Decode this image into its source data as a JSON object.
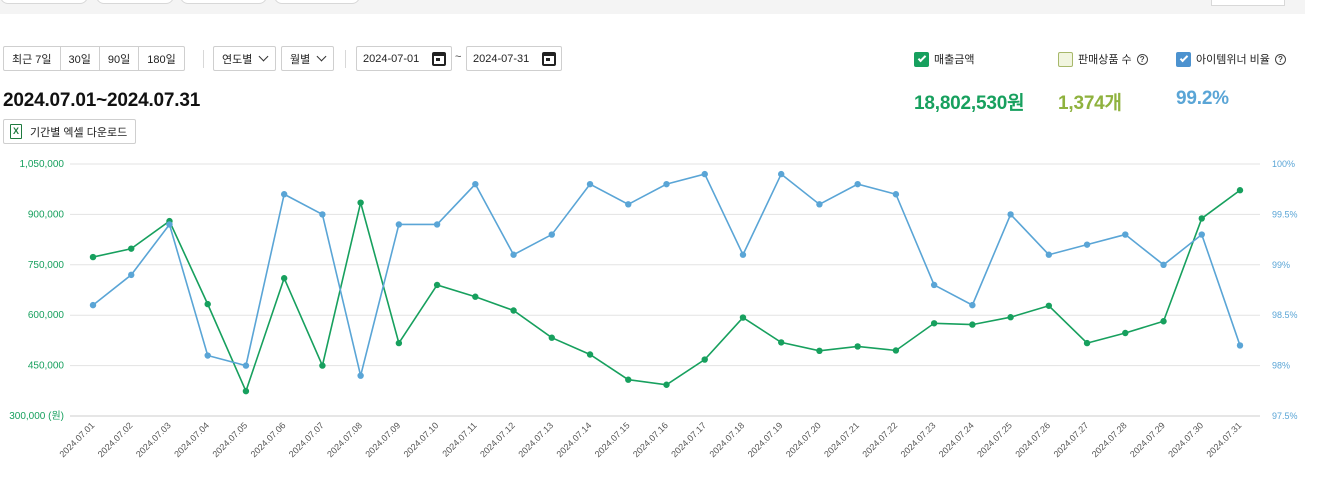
{
  "period_buttons": [
    "최근 7일",
    "30일",
    "90일",
    "180일"
  ],
  "selects": {
    "yearly": "연도별",
    "monthly": "월별"
  },
  "date_range": {
    "start": "2024-07-01",
    "separator": "~",
    "end": "2024-07-31"
  },
  "range_title": "2024.07.01~2024.07.31",
  "download_label": "기간별 엑셀 다운로드",
  "excel_icon_text": "X",
  "legend": {
    "sales": {
      "label": "매출금액",
      "checked": true
    },
    "products": {
      "label": "판매상품 수",
      "checked": false
    },
    "winner": {
      "label": "아이템위너 비율",
      "checked": true
    },
    "help_glyph": "?"
  },
  "totals": {
    "sales": "18,802,530원",
    "products": "1,374개",
    "winner": "99.2%"
  },
  "colors": {
    "sales": "#17a05e",
    "products": "#8fb23e",
    "winner": "#5aa5d6",
    "grid": "#e3e3e3"
  },
  "chart_data": {
    "type": "line",
    "x": [
      "2024.07.01",
      "2024.07.02",
      "2024.07.03",
      "2024.07.04",
      "2024.07.05",
      "2024.07.06",
      "2024.07.07",
      "2024.07.08",
      "2024.07.09",
      "2024.07.10",
      "2024.07.11",
      "2024.07.12",
      "2024.07.13",
      "2024.07.14",
      "2024.07.15",
      "2024.07.16",
      "2024.07.17",
      "2024.07.18",
      "2024.07.19",
      "2024.07.20",
      "2024.07.21",
      "2024.07.22",
      "2024.07.23",
      "2024.07.24",
      "2024.07.25",
      "2024.07.26",
      "2024.07.27",
      "2024.07.28",
      "2024.07.29",
      "2024.07.30",
      "2024.07.31"
    ],
    "series": [
      {
        "name": "매출금액",
        "axis": "left",
        "color": "#17a05e",
        "values": [
          773000,
          798000,
          880000,
          633000,
          374000,
          710000,
          450000,
          935000,
          517000,
          690000,
          655000,
          614000,
          533000,
          483000,
          408000,
          393000,
          468000,
          593000,
          519000,
          494000,
          507000,
          495000,
          576000,
          572000,
          594000,
          628000,
          517000,
          547000,
          582000,
          888000,
          972000
        ]
      },
      {
        "name": "아이템위너 비율",
        "axis": "right",
        "color": "#5aa5d6",
        "values": [
          98.6,
          98.9,
          99.4,
          98.1,
          98.0,
          99.7,
          99.5,
          97.9,
          99.4,
          99.4,
          99.8,
          99.1,
          99.3,
          99.8,
          99.6,
          99.8,
          99.9,
          99.1,
          99.9,
          99.6,
          99.8,
          99.7,
          98.8,
          98.6,
          99.5,
          99.1,
          99.2,
          99.3,
          99.0,
          99.3,
          98.2
        ]
      }
    ],
    "y_left": {
      "ticks": [
        "1,050,000",
        "900,000",
        "750,000",
        "600,000",
        "450,000",
        "300,000 (원)"
      ],
      "min": 300000,
      "max": 1050000
    },
    "y_right": {
      "ticks": [
        "100%",
        "99.5%",
        "99%",
        "98.5%",
        "98%",
        "97.5%"
      ],
      "min": 97.5,
      "max": 100
    },
    "grid": true
  }
}
